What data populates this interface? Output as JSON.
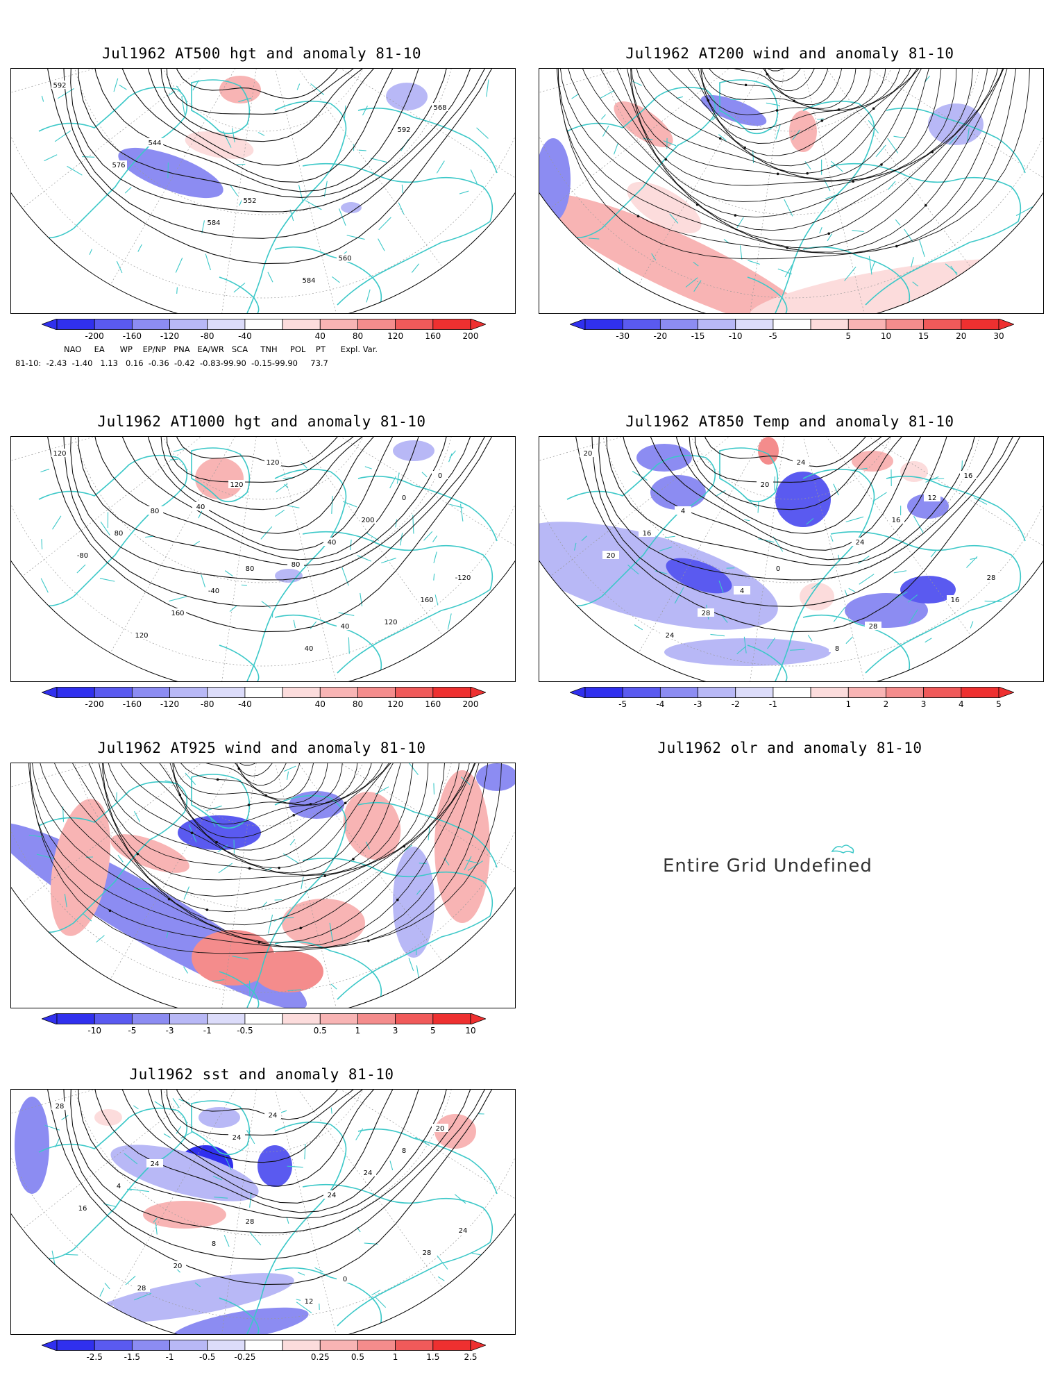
{
  "panels": [
    {
      "title": "Jul1962 AT500 hgt and anomaly 81-10",
      "labels": [
        "592",
        "544",
        "552",
        "560",
        "568",
        "576",
        "584",
        "584",
        "592"
      ]
    },
    {
      "title": "Jul1962 AT200 wind and anomaly 81-10",
      "labels": []
    },
    {
      "title": "Jul1962 AT1000 hgt and anomaly 81-10",
      "labels": [
        "120",
        "80",
        "80",
        "40",
        "0",
        "80",
        "-40",
        "40",
        "0",
        "-80",
        "160",
        "120",
        "200",
        "-120",
        "120",
        "120",
        "40",
        "160",
        "80",
        "40",
        "80",
        "120"
      ]
    },
    {
      "title": "Jul1962 AT850 Temp and anomaly 81-10",
      "labels": [
        "20",
        "4",
        "0",
        "28",
        "16",
        "16",
        "4",
        "8",
        "12",
        "20",
        "28",
        "24",
        "16",
        "28",
        "24",
        "20",
        "24",
        "16"
      ]
    },
    {
      "title": "Jul1962 AT925 wind and anomaly 81-10",
      "labels": []
    },
    {
      "title": "Jul1962 olr and anomaly 81-10",
      "labels": []
    },
    {
      "title": "Jul1962 sst and anomaly 81-10",
      "labels": [
        "28",
        "24",
        "28",
        "0",
        "20",
        "4",
        "8",
        "12",
        "8",
        "16",
        "20",
        "24",
        "24",
        "24",
        "28",
        "24",
        "24",
        "28",
        "28"
      ]
    }
  ],
  "undefined_text": "Entire Grid Undefined",
  "colorbars": {
    "hgt": [
      "-200",
      "-160",
      "-120",
      "-80",
      "-40",
      "40",
      "80",
      "120",
      "160",
      "200"
    ],
    "wind200": [
      "-30",
      "-20",
      "-15",
      "-10",
      "-5",
      "5",
      "10",
      "15",
      "20",
      "30"
    ],
    "temp850": [
      "-5",
      "-4",
      "-3",
      "-2",
      "-1",
      "1",
      "2",
      "3",
      "4",
      "5"
    ],
    "wind925": [
      "-10",
      "-5",
      "-3",
      "-1",
      "-0.5",
      "0.5",
      "1",
      "3",
      "5",
      "10"
    ],
    "sst": [
      "-2.5",
      "-1.5",
      "-1",
      "-0.5",
      "-0.25",
      "0.25",
      "0.5",
      "1",
      "1.5",
      "2.5"
    ]
  },
  "teleconnections": {
    "header": "NAO     EA      WP    EP/NP   PNA   EA/WR   SCA     TNH     POL    PT      Expl. Var.",
    "row": "81-10:  -2.43  -1.40   1.13   0.16  -0.36  -0.42  -0.83-99.90  -0.15-99.90     73.7"
  },
  "colors": {
    "coast": "#3cc8c8",
    "blues": [
      "#3030ee",
      "#5a5af0",
      "#8c8cf2",
      "#b8b8f6",
      "#dcdcfa"
    ],
    "reds": [
      "#fcdcdc",
      "#f8b4b4",
      "#f48c8c",
      "#f05a5a",
      "#ee3030"
    ]
  }
}
